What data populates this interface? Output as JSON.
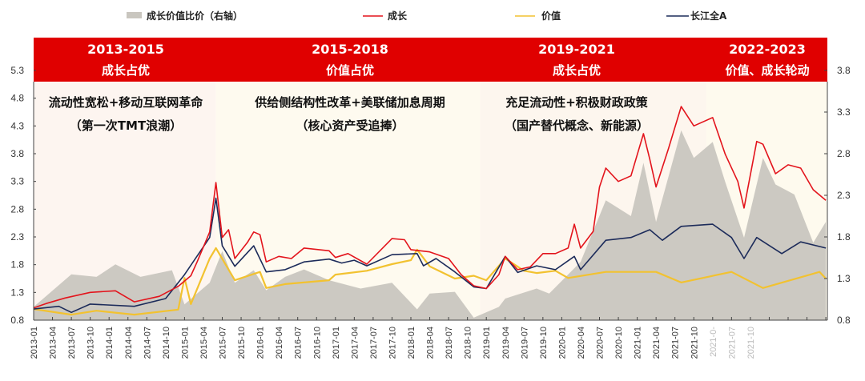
{
  "chart_data": {
    "type": "line",
    "title": "",
    "legend": {
      "position": "top",
      "items": [
        {
          "name": "成长价值比价（右轴）",
          "kind": "area",
          "color": "#c9c6bf"
        },
        {
          "name": "成长",
          "kind": "line",
          "color": "#e3141c"
        },
        {
          "name": "价值",
          "kind": "line",
          "color": "#f2c230"
        },
        {
          "name": "长江全A",
          "kind": "line",
          "color": "#1c2b5a"
        }
      ]
    },
    "y_left": {
      "range": [
        0.8,
        5.3
      ],
      "ticks": [
        "0.8",
        "1.3",
        "1.8",
        "2.3",
        "2.8",
        "3.3",
        "3.8",
        "4.3",
        "4.8",
        "5.3"
      ]
    },
    "y_right": {
      "range": [
        0.8,
        3.8
      ],
      "ticks": [
        "0.8",
        "1.3",
        "1.8",
        "2.3",
        "2.8",
        "3.3",
        "3.8"
      ]
    },
    "x_range": [
      "2013-01",
      "2023-07"
    ],
    "x_ticks": [
      "2013-01",
      "2013-04",
      "2013-07",
      "2013-10",
      "2014-01",
      "2014-04",
      "2014-07",
      "2014-10",
      "2015-01",
      "2015-04",
      "2015-07",
      "2015-10",
      "2016-01",
      "2016-04",
      "2016-07",
      "2016-10",
      "2017-01",
      "2017-04",
      "2017-07",
      "2017-10",
      "2018-01",
      "2018-04",
      "2018-07",
      "2018-10",
      "2019-01",
      "2019-04",
      "2019-07",
      "2019-10",
      "2020-01",
      "2020-04",
      "2020-07",
      "2020-10",
      "2021-01",
      "2021-04",
      "2021-07",
      "2021-10"
    ],
    "x_ticks_blurred": [
      "2021-0-",
      "2021-07",
      "2021-10"
    ],
    "grid": false,
    "series": [
      {
        "name": "成长价值比价（右轴）",
        "axis": "right",
        "type": "area",
        "points": [
          [
            "2013-01",
            0.96
          ],
          [
            "2013-07",
            1.35
          ],
          [
            "2013-11",
            1.32
          ],
          [
            "2014-02",
            1.47
          ],
          [
            "2014-06",
            1.32
          ],
          [
            "2014-11",
            1.4
          ],
          [
            "2015-01",
            0.99
          ],
          [
            "2015-05",
            1.25
          ],
          [
            "2015-07",
            1.63
          ],
          [
            "2015-09",
            1.25
          ],
          [
            "2015-12",
            1.4
          ],
          [
            "2016-02",
            1.16
          ],
          [
            "2016-05",
            1.32
          ],
          [
            "2016-08",
            1.41
          ],
          [
            "2016-12",
            1.28
          ],
          [
            "2017-05",
            1.18
          ],
          [
            "2017-10",
            1.25
          ],
          [
            "2018-02",
            0.93
          ],
          [
            "2018-04",
            1.12
          ],
          [
            "2018-08",
            1.14
          ],
          [
            "2018-11",
            0.83
          ],
          [
            "2019-03",
            0.96
          ],
          [
            "2019-04",
            1.06
          ],
          [
            "2019-09",
            1.18
          ],
          [
            "2019-11",
            1.12
          ],
          [
            "2020-04",
            1.5
          ],
          [
            "2020-08",
            2.24
          ],
          [
            "2020-12",
            2.05
          ],
          [
            "2021-02",
            2.69
          ],
          [
            "2021-04",
            1.98
          ],
          [
            "2021-08",
            3.08
          ],
          [
            "2021-10",
            2.75
          ],
          [
            "2022-01",
            2.94
          ],
          [
            "2022-03",
            2.46
          ],
          [
            "2022-06",
            1.79
          ],
          [
            "2022-09",
            2.75
          ],
          [
            "2022-11",
            2.43
          ],
          [
            "2023-02",
            2.31
          ],
          [
            "2023-05",
            1.73
          ],
          [
            "2023-07",
            1.98
          ]
        ]
      },
      {
        "name": "成长",
        "axis": "left",
        "type": "line",
        "points": [
          [
            "2013-01",
            1.02
          ],
          [
            "2013-03",
            1.1
          ],
          [
            "2013-06",
            1.2
          ],
          [
            "2013-10",
            1.3
          ],
          [
            "2014-02",
            1.33
          ],
          [
            "2014-05",
            1.13
          ],
          [
            "2014-09",
            1.23
          ],
          [
            "2014-12",
            1.41
          ],
          [
            "2015-02",
            1.6
          ],
          [
            "2015-03",
            1.85
          ],
          [
            "2015-05",
            2.39
          ],
          [
            "2015-06",
            3.28
          ],
          [
            "2015-07",
            2.29
          ],
          [
            "2015-08",
            2.43
          ],
          [
            "2015-09",
            1.91
          ],
          [
            "2015-11",
            2.2
          ],
          [
            "2015-12",
            2.39
          ],
          [
            "2016-01",
            2.34
          ],
          [
            "2016-02",
            1.85
          ],
          [
            "2016-04",
            1.95
          ],
          [
            "2016-06",
            1.91
          ],
          [
            "2016-08",
            2.1
          ],
          [
            "2016-12",
            2.05
          ],
          [
            "2017-01",
            1.93
          ],
          [
            "2017-03",
            2.0
          ],
          [
            "2017-06",
            1.81
          ],
          [
            "2017-10",
            2.27
          ],
          [
            "2017-12",
            2.25
          ],
          [
            "2018-01",
            2.07
          ],
          [
            "2018-04",
            2.03
          ],
          [
            "2018-07",
            1.91
          ],
          [
            "2018-09",
            1.62
          ],
          [
            "2018-11",
            1.42
          ],
          [
            "2019-01",
            1.37
          ],
          [
            "2019-03",
            1.62
          ],
          [
            "2019-04",
            1.95
          ],
          [
            "2019-06",
            1.71
          ],
          [
            "2019-08",
            1.76
          ],
          [
            "2019-10",
            2.0
          ],
          [
            "2019-12",
            2.0
          ],
          [
            "2020-02",
            2.1
          ],
          [
            "2020-03",
            2.53
          ],
          [
            "2020-04",
            2.1
          ],
          [
            "2020-06",
            2.4
          ],
          [
            "2020-07",
            3.2
          ],
          [
            "2020-08",
            3.54
          ],
          [
            "2020-10",
            3.3
          ],
          [
            "2020-12",
            3.4
          ],
          [
            "2021-02",
            4.16
          ],
          [
            "2021-03",
            3.7
          ],
          [
            "2021-04",
            3.2
          ],
          [
            "2021-06",
            3.9
          ],
          [
            "2021-08",
            4.65
          ],
          [
            "2021-10",
            4.3
          ],
          [
            "2022-01",
            4.45
          ],
          [
            "2022-03",
            3.79
          ],
          [
            "2022-05",
            3.3
          ],
          [
            "2022-06",
            2.82
          ],
          [
            "2022-08",
            4.02
          ],
          [
            "2022-09",
            3.97
          ],
          [
            "2022-11",
            3.44
          ],
          [
            "2023-01",
            3.6
          ],
          [
            "2023-03",
            3.54
          ],
          [
            "2023-05",
            3.15
          ],
          [
            "2023-07",
            2.96
          ]
        ]
      },
      {
        "name": "价值",
        "axis": "left",
        "type": "line",
        "points": [
          [
            "2013-01",
            1.0
          ],
          [
            "2013-07",
            0.9
          ],
          [
            "2013-11",
            0.97
          ],
          [
            "2014-05",
            0.9
          ],
          [
            "2014-12",
            0.99
          ],
          [
            "2015-01",
            1.56
          ],
          [
            "2015-02",
            1.09
          ],
          [
            "2015-05",
            1.91
          ],
          [
            "2015-06",
            2.1
          ],
          [
            "2015-09",
            1.52
          ],
          [
            "2016-01",
            1.67
          ],
          [
            "2016-02",
            1.38
          ],
          [
            "2016-05",
            1.45
          ],
          [
            "2016-12",
            1.52
          ],
          [
            "2017-01",
            1.62
          ],
          [
            "2017-06",
            1.69
          ],
          [
            "2017-10",
            1.81
          ],
          [
            "2018-01",
            1.88
          ],
          [
            "2018-02",
            2.07
          ],
          [
            "2018-04",
            1.77
          ],
          [
            "2018-08",
            1.55
          ],
          [
            "2018-11",
            1.6
          ],
          [
            "2019-01",
            1.52
          ],
          [
            "2019-04",
            1.91
          ],
          [
            "2019-07",
            1.69
          ],
          [
            "2019-09",
            1.65
          ],
          [
            "2019-12",
            1.69
          ],
          [
            "2020-02",
            1.56
          ],
          [
            "2020-08",
            1.67
          ],
          [
            "2021-04",
            1.67
          ],
          [
            "2021-08",
            1.48
          ],
          [
            "2022-04",
            1.67
          ],
          [
            "2022-09",
            1.38
          ],
          [
            "2023-06",
            1.67
          ],
          [
            "2023-07",
            1.55
          ]
        ]
      },
      {
        "name": "长江全A",
        "axis": "left",
        "type": "line",
        "points": [
          [
            "2013-01",
            1.0
          ],
          [
            "2013-05",
            1.05
          ],
          [
            "2013-07",
            0.94
          ],
          [
            "2013-10",
            1.09
          ],
          [
            "2014-05",
            1.05
          ],
          [
            "2014-10",
            1.19
          ],
          [
            "2015-01",
            1.62
          ],
          [
            "2015-05",
            2.29
          ],
          [
            "2015-06",
            3.0
          ],
          [
            "2015-07",
            2.14
          ],
          [
            "2015-09",
            1.77
          ],
          [
            "2015-12",
            2.14
          ],
          [
            "2016-02",
            1.67
          ],
          [
            "2016-05",
            1.71
          ],
          [
            "2016-08",
            1.85
          ],
          [
            "2016-12",
            1.9
          ],
          [
            "2017-02",
            1.83
          ],
          [
            "2017-04",
            1.88
          ],
          [
            "2017-06",
            1.78
          ],
          [
            "2017-10",
            1.98
          ],
          [
            "2018-02",
            2.0
          ],
          [
            "2018-03",
            1.78
          ],
          [
            "2018-05",
            1.91
          ],
          [
            "2018-08",
            1.67
          ],
          [
            "2018-11",
            1.4
          ],
          [
            "2019-01",
            1.37
          ],
          [
            "2019-04",
            1.95
          ],
          [
            "2019-06",
            1.66
          ],
          [
            "2019-09",
            1.78
          ],
          [
            "2019-12",
            1.71
          ],
          [
            "2020-03",
            1.95
          ],
          [
            "2020-04",
            1.71
          ],
          [
            "2020-08",
            2.24
          ],
          [
            "2020-12",
            2.29
          ],
          [
            "2021-03",
            2.43
          ],
          [
            "2021-05",
            2.24
          ],
          [
            "2021-08",
            2.49
          ],
          [
            "2022-01",
            2.53
          ],
          [
            "2022-04",
            2.29
          ],
          [
            "2022-06",
            1.91
          ],
          [
            "2022-08",
            2.29
          ],
          [
            "2022-12",
            2.0
          ],
          [
            "2023-03",
            2.21
          ],
          [
            "2023-07",
            2.1
          ]
        ]
      }
    ],
    "regimes": [
      {
        "period": "2013-2015",
        "label": "成长占优",
        "start": "2013-01",
        "end": "2015-06",
        "note1": "流动性宽松+移动互联网革命",
        "note2": "（第一次TMT浪潮）"
      },
      {
        "period": "2015-2018",
        "label": "价值占优",
        "start": "2015-06",
        "end": "2018-12",
        "note1": "供给侧结构性改革+美联储加息周期",
        "note2": "（核心资产受追捧）"
      },
      {
        "period": "2019-2021",
        "label": "成长占优",
        "start": "2018-12",
        "end": "2021-12",
        "note1": "充足流动性+积极财政政策",
        "note2": "（国产替代概念、新能源）"
      },
      {
        "period": "2022-2023",
        "label": "价值、成长轮动",
        "start": "2021-12",
        "end": "2023-07",
        "note1": "",
        "note2": ""
      }
    ]
  }
}
